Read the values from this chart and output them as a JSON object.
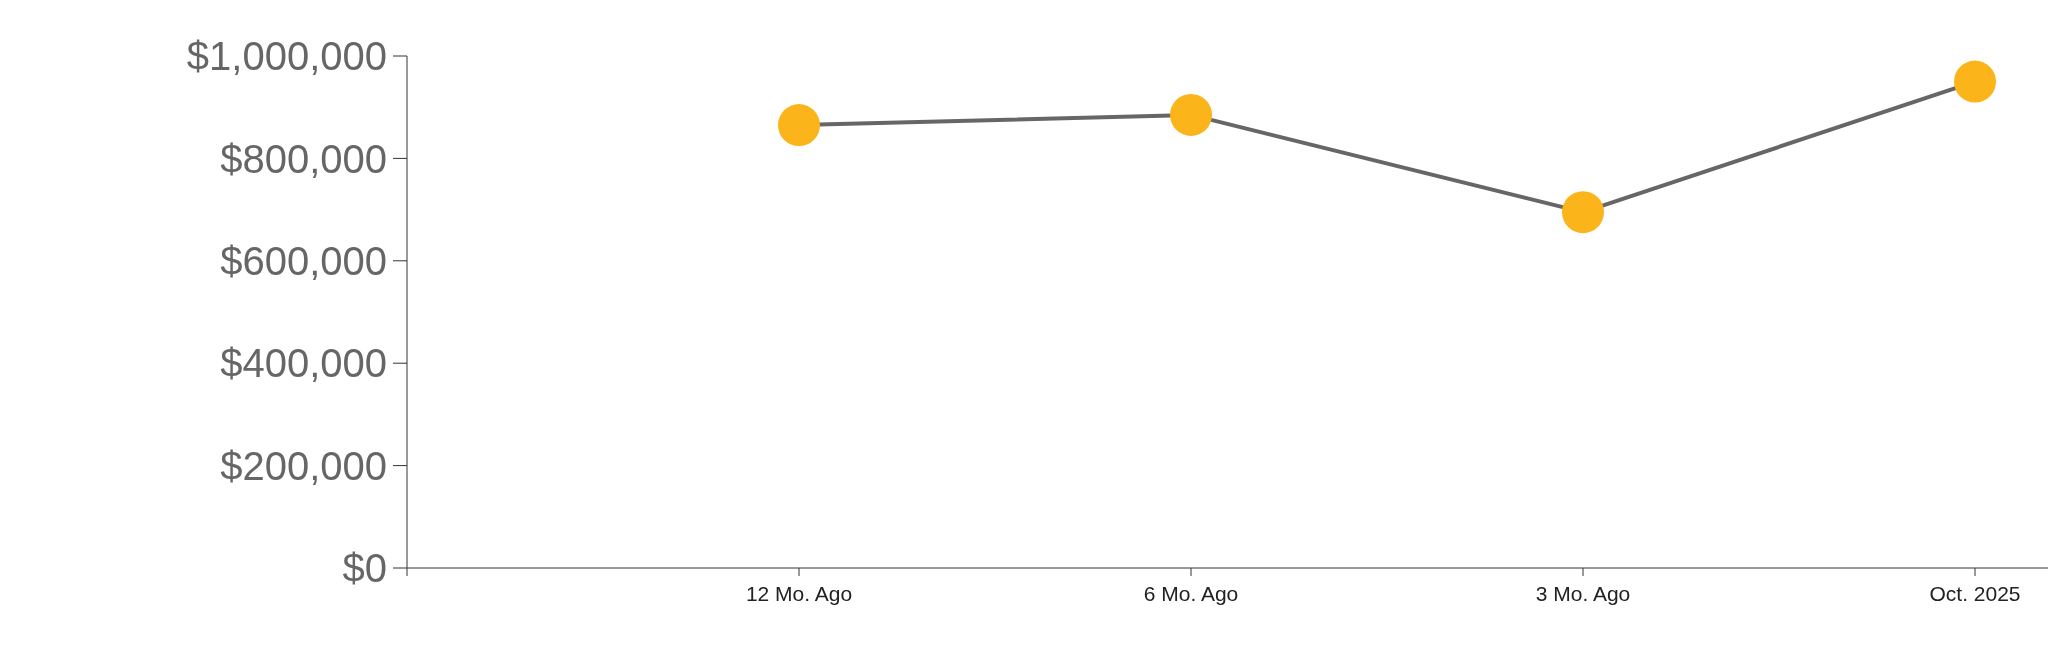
{
  "chart_data": {
    "type": "line",
    "categories": [
      null,
      "12 Mo. Ago",
      "6 Mo. Ago",
      "3 Mo. Ago",
      "Oct. 2025"
    ],
    "series": [
      {
        "color": "#666666",
        "colors": [
          null,
          "#fbb41a",
          "#fbb41a",
          "#fbb41a",
          "#fbb41a"
        ],
        "values": [
          null,
          865000,
          885000,
          695000,
          950000
        ]
      }
    ],
    "marker": "circle",
    "ylim": [
      0,
      1000000
    ],
    "yticks": [
      {
        "value": 0,
        "label": "$0"
      },
      {
        "value": 200000,
        "label": "$200,000"
      },
      {
        "value": 400000,
        "label": "$400,000"
      },
      {
        "value": 600000,
        "label": "$600,000"
      },
      {
        "value": 800000,
        "label": "$800,000"
      },
      {
        "value": 1000000,
        "label": "$1,000,000"
      }
    ],
    "grid": false,
    "legend": false
  }
}
